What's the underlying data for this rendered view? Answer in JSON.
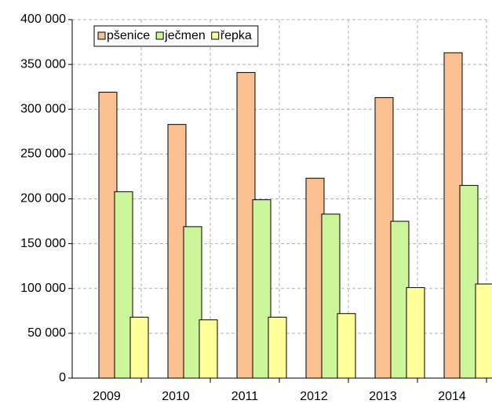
{
  "chart_data": {
    "type": "bar",
    "categories": [
      "2009",
      "2010",
      "2011",
      "2012",
      "2013",
      "2014"
    ],
    "series": [
      {
        "name": "pšenice",
        "color": "#fac090",
        "values": [
          319000,
          283000,
          341000,
          223000,
          313000,
          363000
        ]
      },
      {
        "name": "ječmen",
        "color": "#ccf59a",
        "values": [
          208000,
          169000,
          199000,
          183000,
          175000,
          215000
        ]
      },
      {
        "name": "řepka",
        "color": "#ffff99",
        "values": [
          68000,
          65000,
          68000,
          72000,
          101000,
          105000
        ]
      }
    ],
    "ylim": [
      0,
      400000
    ],
    "yticks": [
      0,
      {
        "value": 50000,
        "label": "50 000"
      },
      {
        "value": 100000,
        "label": "100 000"
      },
      {
        "value": 150000,
        "label": "150 000"
      },
      {
        "value": 200000,
        "label": "200 000"
      },
      {
        "value": 250000,
        "label": "250 000"
      },
      {
        "value": 300000,
        "label": "300 000"
      },
      {
        "value": 350000,
        "label": "350 000"
      },
      {
        "value": 400000,
        "label": "400 000"
      }
    ],
    "grid": true,
    "legend": "top-left"
  }
}
